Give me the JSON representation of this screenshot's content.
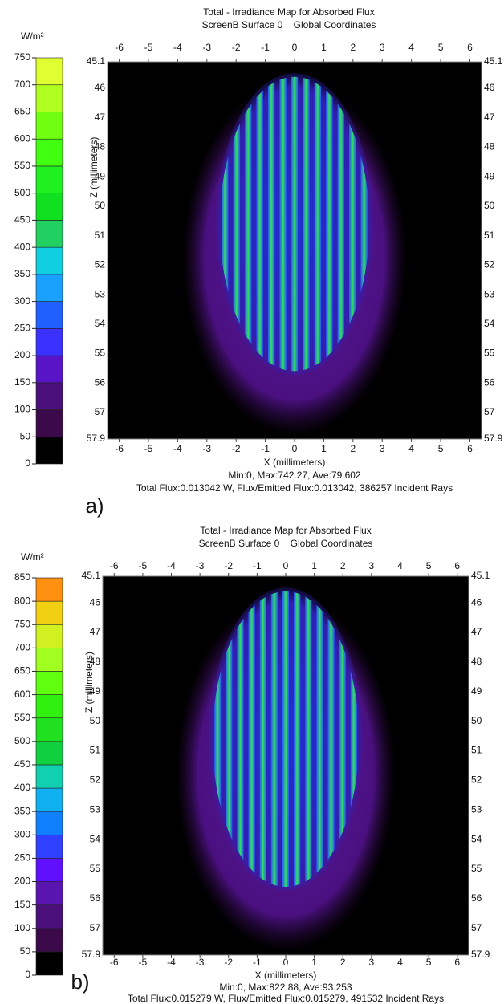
{
  "chart_data": [
    {
      "type": "heatmap",
      "title": "Total - Irradiance Map for Absorbed Flux",
      "subtitle": "ScreenB Surface 0    Global Coordinates",
      "xlabel": "X (millimeters)",
      "ylabel": "Z (millimeters)",
      "xlim": [
        -6.4,
        6.4
      ],
      "xticks": [
        -6,
        -5,
        -4,
        -3,
        -2,
        -1,
        0,
        1,
        2,
        3,
        4,
        5,
        6
      ],
      "ylim": [
        45.1,
        57.9
      ],
      "yticks": [
        45.1,
        46,
        47,
        48,
        49,
        50,
        51,
        52,
        53,
        54,
        55,
        56,
        57,
        57.9
      ],
      "y_reversed": true,
      "colorbar": {
        "unit": "W/m²",
        "lim": [
          0,
          750
        ],
        "ticks": [
          0,
          50,
          100,
          150,
          200,
          250,
          300,
          350,
          400,
          450,
          500,
          550,
          600,
          650,
          700,
          750
        ],
        "colors": [
          "#000000",
          "#3c0a4a",
          "#4b0f7a",
          "#5a14c8",
          "#3a30ff",
          "#2060ff",
          "#1aa0ff",
          "#10d0e0",
          "#20d060",
          "#10e020",
          "#20f020",
          "#40ff10",
          "#70ff10",
          "#b0ff20",
          "#e0ff30"
        ]
      },
      "stats": [
        "Min:0, Max:742.27, Ave:79.602",
        "Total Flux:0.013042 W, Flux/Emitted Flux:0.013042, 386257 Incident Rays"
      ],
      "panel_label": "a)"
    },
    {
      "type": "heatmap",
      "title": "Total - Irradiance Map for Absorbed Flux",
      "subtitle": "ScreenB Surface 0    Global Coordinates",
      "xlabel": "X (millimeters)",
      "ylabel": "Z (millimeters)",
      "xlim": [
        -6.4,
        6.4
      ],
      "xticks": [
        -6,
        -5,
        -4,
        -3,
        -2,
        -1,
        0,
        1,
        2,
        3,
        4,
        5,
        6
      ],
      "ylim": [
        45.1,
        57.9
      ],
      "yticks": [
        45.1,
        46,
        47,
        48,
        49,
        50,
        51,
        52,
        53,
        54,
        55,
        56,
        57,
        57.9
      ],
      "y_reversed": true,
      "colorbar": {
        "unit": "W/m²",
        "lim": [
          0,
          850
        ],
        "ticks": [
          0,
          50,
          100,
          150,
          200,
          250,
          300,
          350,
          400,
          450,
          500,
          550,
          600,
          650,
          700,
          750,
          800,
          850
        ],
        "colors": [
          "#000000",
          "#3c0a4a",
          "#4b0f7a",
          "#5a14b0",
          "#6010ff",
          "#3040ff",
          "#1080ff",
          "#10b0f0",
          "#10d0b0",
          "#10d040",
          "#20e020",
          "#30f010",
          "#60ff10",
          "#a0ff20",
          "#d0f020",
          "#f0d010",
          "#ff9010"
        ]
      },
      "stats": [
        "Min:0, Max:822.88, Ave:93.253",
        "Total Flux:0.015279 W, Flux/Emitted Flux:0.015279, 491532 Incident Rays"
      ],
      "panel_label": "b)"
    }
  ]
}
